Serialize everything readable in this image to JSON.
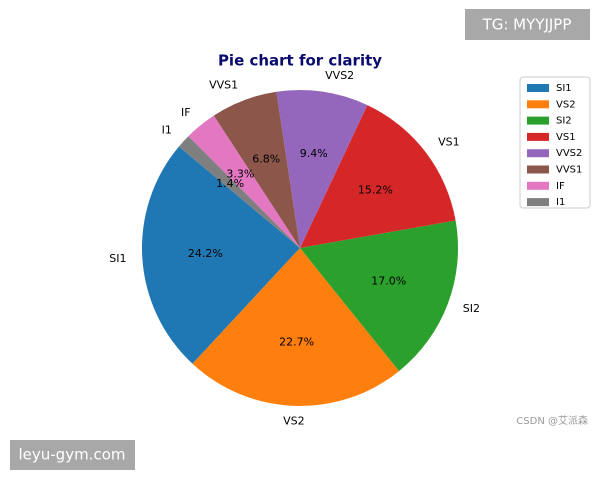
{
  "chart_data": {
    "type": "pie",
    "title": "Pie chart for clarity",
    "categories": [
      "SI1",
      "VS2",
      "SI2",
      "VS1",
      "VVS2",
      "VVS1",
      "IF",
      "I1"
    ],
    "values": [
      24.2,
      22.7,
      17.0,
      15.2,
      9.4,
      6.8,
      3.3,
      1.4
    ],
    "value_labels": [
      "24.2%",
      "22.7%",
      "17.0%",
      "15.2%",
      "9.4%",
      "6.8%",
      "3.3%",
      "1.4%"
    ],
    "colors": [
      "#1f77b4",
      "#ff7f0e",
      "#2ca02c",
      "#d62728",
      "#9467bd",
      "#8c564b",
      "#e377c2",
      "#7f7f7f"
    ],
    "legend": "upper right"
  },
  "watermarks": {
    "top": "TG: MYYJJPP",
    "bottom": "leyu-gym.com",
    "credit": "CSDN @艾派森"
  }
}
